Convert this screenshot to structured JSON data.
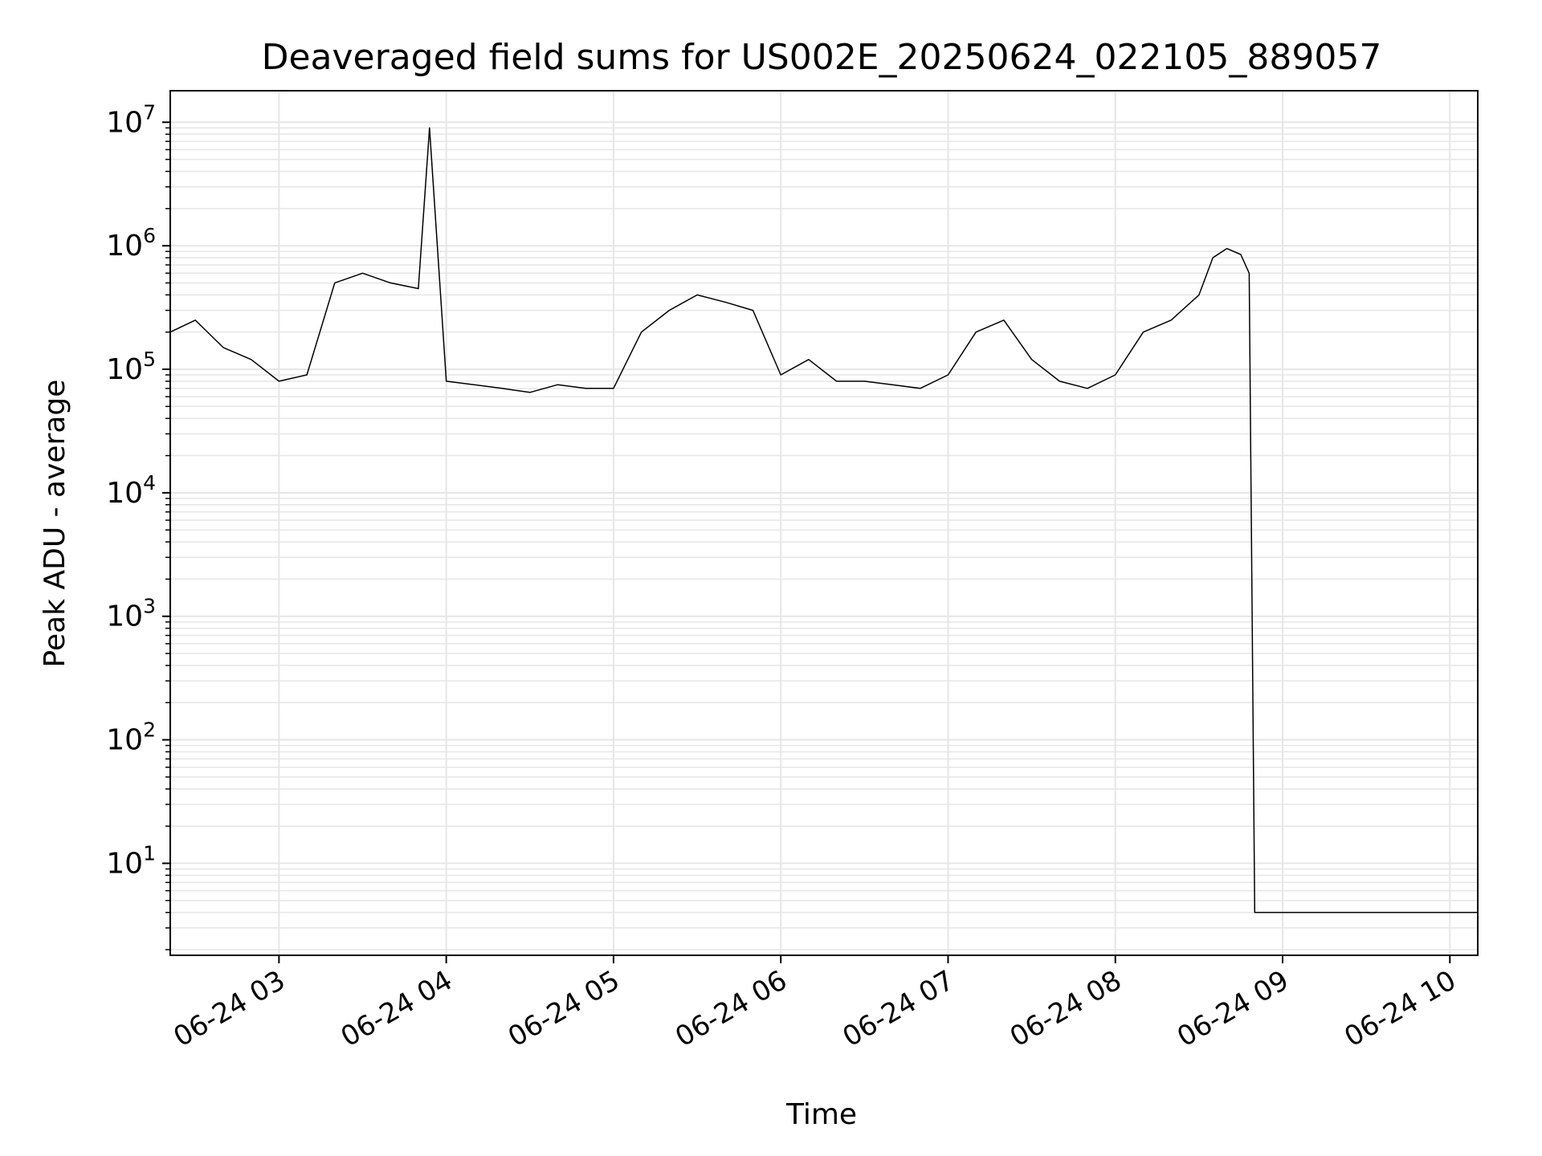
{
  "chart_data": {
    "type": "line",
    "title": "Deaveraged field sums for US002E_20250624_022105_889057",
    "xlabel": "Time",
    "ylabel": "Peak ADU - average",
    "yscale": "log",
    "ylim": [
      1.8,
      18000000
    ],
    "xlim": [
      "06-24 02:21",
      "06-24 10:10"
    ],
    "grid": true,
    "line_color": "#000000",
    "grid_color": "#e6e6e6",
    "xticks": [
      "06-24 03",
      "06-24 04",
      "06-24 05",
      "06-24 06",
      "06-24 07",
      "06-24 08",
      "06-24 09",
      "06-24 10"
    ],
    "yticks": [
      {
        "base": "10",
        "exp": "1",
        "value": 10
      },
      {
        "base": "10",
        "exp": "2",
        "value": 100
      },
      {
        "base": "10",
        "exp": "3",
        "value": 1000
      },
      {
        "base": "10",
        "exp": "4",
        "value": 10000
      },
      {
        "base": "10",
        "exp": "5",
        "value": 100000
      },
      {
        "base": "10",
        "exp": "6",
        "value": 1000000
      },
      {
        "base": "10",
        "exp": "7",
        "value": 10000000
      }
    ],
    "series": [
      {
        "x": [
          "06-24 02:21",
          "06-24 02:30",
          "06-24 02:40",
          "06-24 02:50",
          "06-24 03:00",
          "06-24 03:10",
          "06-24 03:20",
          "06-24 03:30",
          "06-24 03:40",
          "06-24 03:50",
          "06-24 03:54",
          "06-24 04:00",
          "06-24 04:10",
          "06-24 04:20",
          "06-24 04:30",
          "06-24 04:40",
          "06-24 04:50",
          "06-24 05:00",
          "06-24 05:10",
          "06-24 05:20",
          "06-24 05:30",
          "06-24 05:40",
          "06-24 05:50",
          "06-24 06:00",
          "06-24 06:10",
          "06-24 06:20",
          "06-24 06:30",
          "06-24 06:40",
          "06-24 06:50",
          "06-24 07:00",
          "06-24 07:10",
          "06-24 07:20",
          "06-24 07:30",
          "06-24 07:40",
          "06-24 07:50",
          "06-24 08:00",
          "06-24 08:10",
          "06-24 08:20",
          "06-24 08:30",
          "06-24 08:35",
          "06-24 08:40",
          "06-24 08:45",
          "06-24 08:48",
          "06-24 08:50",
          "06-24 09:00",
          "06-24 09:30",
          "06-24 10:00",
          "06-24 10:10"
        ],
        "values": [
          200000,
          250000,
          150000,
          120000,
          80000,
          90000,
          500000,
          600000,
          500000,
          450000,
          9000000,
          80000,
          75000,
          70000,
          65000,
          75000,
          70000,
          70000,
          200000,
          300000,
          400000,
          350000,
          300000,
          90000,
          120000,
          80000,
          80000,
          75000,
          70000,
          90000,
          200000,
          250000,
          120000,
          80000,
          70000,
          90000,
          200000,
          250000,
          400000,
          800000,
          950000,
          850000,
          600000,
          4,
          4,
          4,
          4,
          4
        ]
      }
    ]
  }
}
